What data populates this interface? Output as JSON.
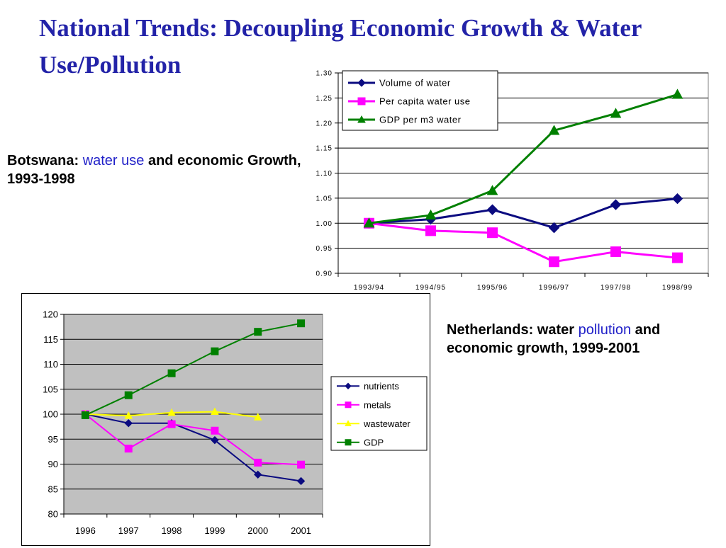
{
  "title": "National Trends: Decoupling Economic Growth & Water Use/Pollution",
  "caption_botswana": {
    "pre": "Botswana: ",
    "highlight": "water use",
    "post": " and economic Growth, 1993-1998"
  },
  "caption_netherlands": {
    "pre": "Netherlands: water ",
    "highlight": "pollution",
    "post": " and economic growth, 1999-2001"
  },
  "colors": {
    "title": "#2323a8",
    "highlight": "#1f1fc8",
    "navy": "#0b0b80",
    "magenta": "#ff00ff",
    "green": "#008000",
    "yellow": "#ffff00",
    "plot_bg2": "#c0c0c0"
  },
  "chart_data": [
    {
      "type": "line",
      "categories": [
        "1993/94",
        "1994/95",
        "1995/96",
        "1996/97",
        "1997/98",
        "1998/99"
      ],
      "ylim": [
        0.9,
        1.3
      ],
      "yticks": [
        "0.90",
        "0.95",
        "1.00",
        "1.05",
        "1.10",
        "1.15",
        "1.20",
        "1.25",
        "1.30"
      ],
      "grid": true,
      "legend": "top-left",
      "series": [
        {
          "name": "Volume of water",
          "values": [
            1.0,
            1.008,
            1.027,
            0.991,
            1.037,
            1.049
          ],
          "color": "#0b0b80",
          "marker": "diamond"
        },
        {
          "name": "Per capita water use",
          "values": [
            1.0,
            0.985,
            0.981,
            0.923,
            0.943,
            0.931
          ],
          "color": "#ff00ff",
          "marker": "square"
        },
        {
          "name": "GDP per m3 water",
          "values": [
            1.0,
            1.016,
            1.065,
            1.185,
            1.219,
            1.257
          ],
          "color": "#008000",
          "marker": "triangle"
        }
      ]
    },
    {
      "type": "line",
      "categories": [
        "1996",
        "1997",
        "1998",
        "1999",
        "2000",
        "2001"
      ],
      "ylim": [
        80,
        120
      ],
      "yticks": [
        "80",
        "85",
        "90",
        "95",
        "100",
        "105",
        "110",
        "115",
        "120"
      ],
      "grid": true,
      "legend": "right",
      "series": [
        {
          "name": "nutrients",
          "values": [
            100,
            98.2,
            98.2,
            94.8,
            87.9,
            86.6
          ],
          "color": "#0b0b80",
          "marker": "diamond"
        },
        {
          "name": "metals",
          "values": [
            100,
            93.1,
            98.0,
            96.7,
            90.3,
            89.9
          ],
          "color": "#ff00ff",
          "marker": "square"
        },
        {
          "name": "wastewater",
          "values": [
            100,
            99.7,
            100.3,
            100.5,
            99.4,
            null
          ],
          "color": "#ffff00",
          "marker": "triangle"
        },
        {
          "name": "GDP",
          "values": [
            99.8,
            103.8,
            108.2,
            112.6,
            116.5,
            118.2
          ],
          "color": "#008000",
          "marker": "square"
        }
      ]
    }
  ]
}
